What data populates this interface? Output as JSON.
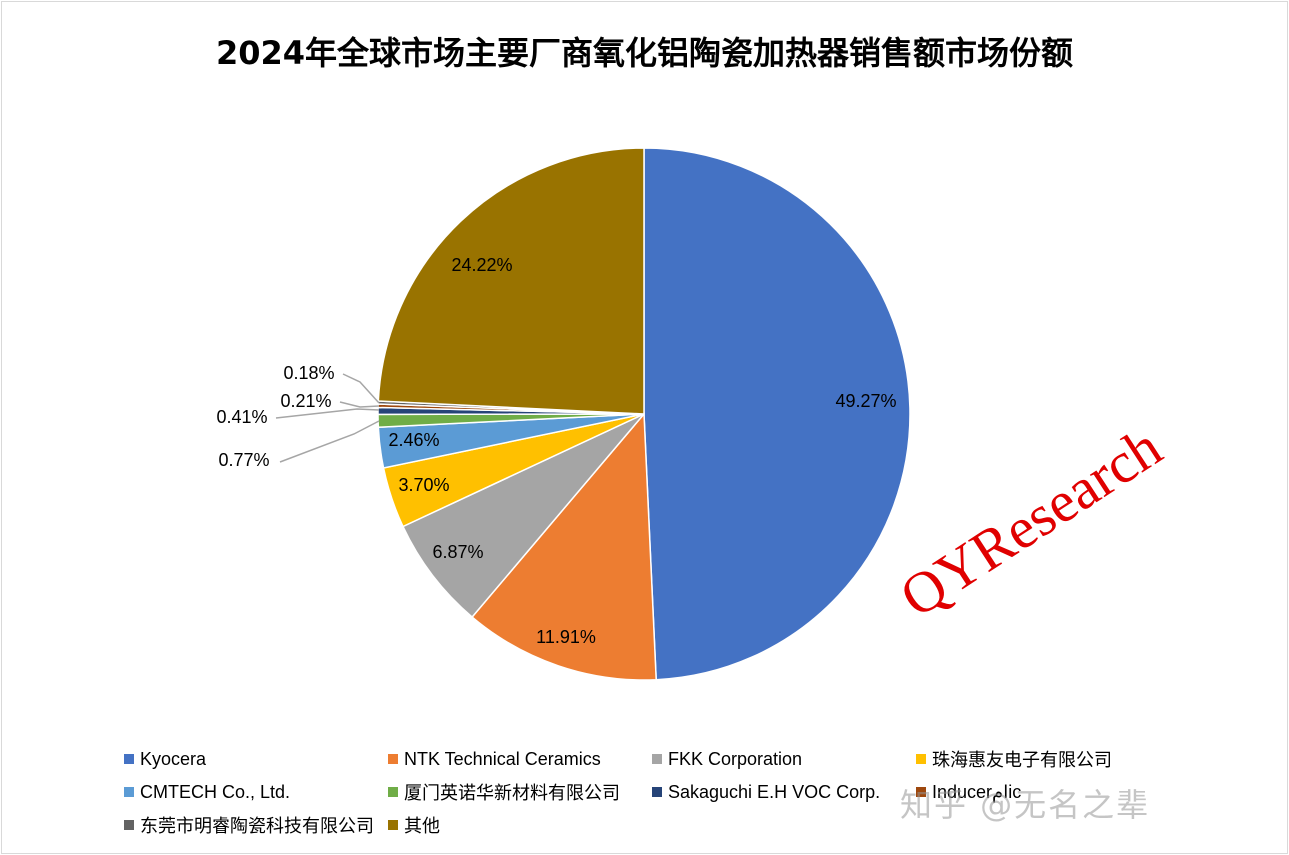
{
  "chart_data": {
    "type": "pie",
    "title": "2024年全球市场主要厂商氧化铝陶瓷加热器销售额市场份额",
    "legend_position": "bottom",
    "slices": [
      {
        "name": "Kyocera",
        "value": 49.27,
        "label": "49.27%",
        "color": "#4472C4"
      },
      {
        "name": "NTK Technical Ceramics",
        "value": 11.91,
        "label": "11.91%",
        "color": "#ED7D31"
      },
      {
        "name": "FKK Corporation",
        "value": 6.87,
        "label": "6.87%",
        "color": "#A5A5A5"
      },
      {
        "name": "珠海惠友电子有限公司",
        "value": 3.7,
        "label": "3.70%",
        "color": "#FFC000"
      },
      {
        "name": "CMTECH Co., Ltd.",
        "value": 2.46,
        "label": "2.46%",
        "color": "#5B9BD5"
      },
      {
        "name": "厦门英诺华新材料有限公司",
        "value": 0.77,
        "label": "0.77%",
        "color": "#70AD47"
      },
      {
        "name": "Sakaguchi E.H VOC Corp.",
        "value": 0.41,
        "label": "0.41%",
        "color": "#264478"
      },
      {
        "name": "Inducerامic",
        "value": 0.21,
        "label": "0.21%",
        "color": "#9E480E"
      },
      {
        "name": "东莞市明睿陶瓷科技有限公司",
        "value": 0.18,
        "label": "0.18%",
        "color": "#636363"
      },
      {
        "name": "其他",
        "value": 24.22,
        "label": "24.22%",
        "color": "#997300"
      }
    ],
    "watermark_text": "QYResearch",
    "watermark_color": "#e00000"
  },
  "footer": {
    "watermark": "知乎 @无名之辈"
  }
}
